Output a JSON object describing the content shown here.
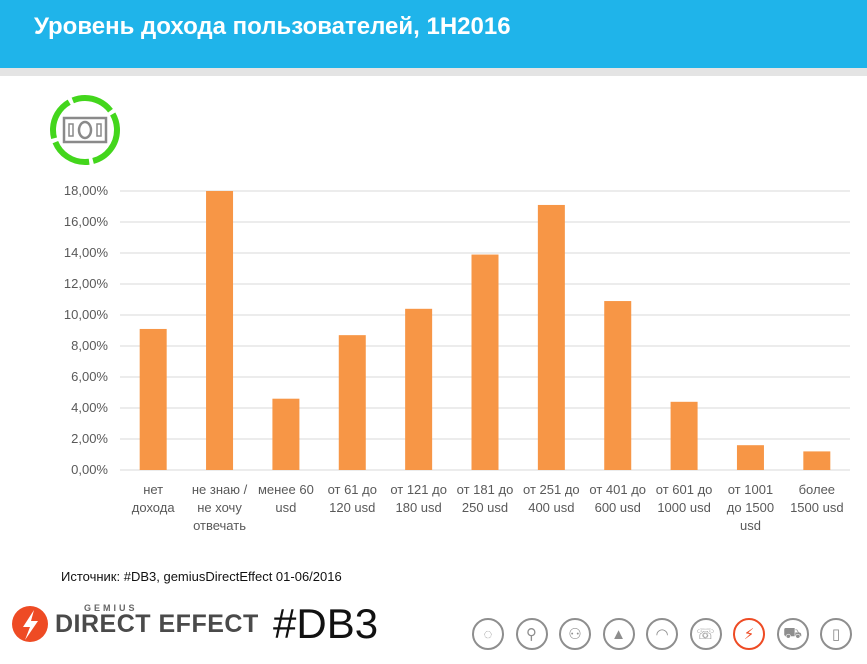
{
  "header": {
    "title": "Уровень дохода пользователей, 1H2016"
  },
  "icons": {
    "money": "money-bill-icon"
  },
  "chart_data": {
    "type": "bar",
    "title": "",
    "xlabel": "",
    "ylabel": "",
    "ylim": [
      0,
      18
    ],
    "yticks": [
      "0,00%",
      "2,00%",
      "4,00%",
      "6,00%",
      "8,00%",
      "10,00%",
      "12,00%",
      "14,00%",
      "16,00%",
      "18,00%"
    ],
    "grid": true,
    "bar_color": "#f79646",
    "categories": [
      [
        "нет",
        "дохода"
      ],
      [
        "не знаю /",
        "не хочу",
        "отвечать"
      ],
      [
        "менее 60",
        "usd"
      ],
      [
        "от 61 до",
        "120 usd"
      ],
      [
        "от 121 до",
        "180 usd"
      ],
      [
        "от 181 до",
        "250 usd"
      ],
      [
        "от 251 до",
        "400 usd"
      ],
      [
        "от 401 до",
        "600 usd"
      ],
      [
        "от 601 до",
        "1000 usd"
      ],
      [
        "от 1001",
        "до 1500",
        "usd"
      ],
      [
        "более",
        "1500 usd"
      ]
    ],
    "values": [
      9.1,
      18.0,
      4.6,
      8.7,
      10.4,
      13.9,
      17.1,
      10.9,
      4.4,
      1.6,
      1.2
    ]
  },
  "footer": {
    "source": "Источник: #DB3, gemiusDirectEffect 01-06/2016",
    "logo_small": "GEMIUS",
    "logo_text": "DIRECT EFFECT",
    "hashtag": "#DB3",
    "accent_color": "#ee4b24",
    "nav_icons": [
      {
        "name": "megaphone-icon",
        "glyph": "◌"
      },
      {
        "name": "location-pin-icon",
        "glyph": "⚲"
      },
      {
        "name": "people-icon",
        "glyph": "⚇"
      },
      {
        "name": "chart-triangle-icon",
        "glyph": "▲"
      },
      {
        "name": "wifi-icon",
        "glyph": "◠"
      },
      {
        "name": "phone-icon",
        "glyph": "☏"
      },
      {
        "name": "lightning-icon",
        "glyph": "⚡",
        "active": true
      },
      {
        "name": "cart-icon",
        "glyph": "⛟"
      },
      {
        "name": "mobile-icon",
        "glyph": "▯"
      }
    ]
  }
}
